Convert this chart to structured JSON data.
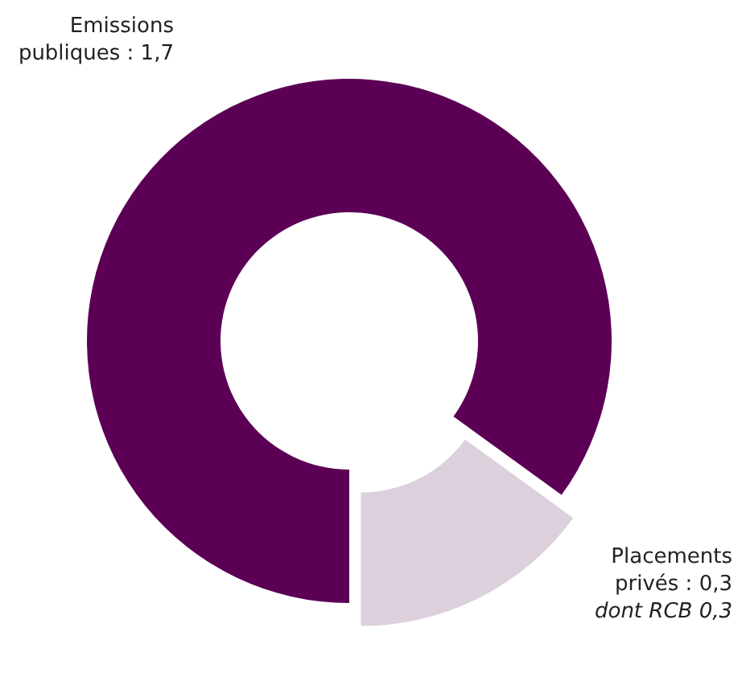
{
  "chart_data": {
    "type": "donut",
    "categories": [
      "Emissions publiques",
      "Placements privés"
    ],
    "values": [
      1.7,
      0.3
    ],
    "value_labels": [
      "1,7",
      "0,3"
    ],
    "colors": [
      "#5c0055",
      "#dcd0dd"
    ],
    "annotations": [
      "dont RCB 0,3"
    ]
  }
}
